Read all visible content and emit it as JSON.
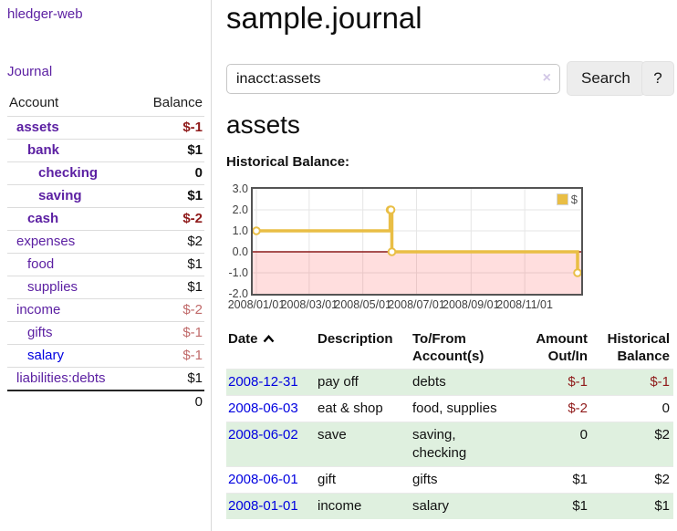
{
  "app": {
    "brand": "hledger-web",
    "nav_journal": "Journal"
  },
  "sidebar": {
    "table": {
      "col_account": "Account",
      "col_balance": "Balance",
      "accounts": [
        {
          "name": "assets",
          "indent": 1,
          "bold": true,
          "balance": "$-1",
          "balance_class": "neg-strong",
          "blue": false
        },
        {
          "name": "bank",
          "indent": 2,
          "bold": true,
          "balance": "$1",
          "balance_class": "normal",
          "blue": false
        },
        {
          "name": "checking",
          "indent": 3,
          "bold": true,
          "balance": "0",
          "balance_class": "normal",
          "blue": false
        },
        {
          "name": "saving",
          "indent": 3,
          "bold": true,
          "balance": "$1",
          "balance_class": "normal",
          "blue": false
        },
        {
          "name": "cash",
          "indent": 2,
          "bold": true,
          "balance": "$-2",
          "balance_class": "neg-strong",
          "blue": false
        },
        {
          "name": "expenses",
          "indent": 1,
          "bold": false,
          "balance": "$2",
          "balance_class": "normal",
          "blue": false
        },
        {
          "name": "food",
          "indent": 2,
          "bold": false,
          "balance": "$1",
          "balance_class": "normal",
          "blue": false
        },
        {
          "name": "supplies",
          "indent": 2,
          "bold": false,
          "balance": "$1",
          "balance_class": "normal",
          "blue": false
        },
        {
          "name": "income",
          "indent": 1,
          "bold": false,
          "balance": "$-2",
          "balance_class": "neg-soft",
          "blue": false
        },
        {
          "name": "gifts",
          "indent": 2,
          "bold": false,
          "balance": "$-1",
          "balance_class": "neg-soft",
          "blue": false
        },
        {
          "name": "salary",
          "indent": 2,
          "bold": false,
          "balance": "$-1",
          "balance_class": "neg-soft",
          "blue": true
        },
        {
          "name": "liabilities:debts",
          "indent": 1,
          "bold": false,
          "balance": "$1",
          "balance_class": "normal",
          "blue": false
        }
      ],
      "total": "0"
    }
  },
  "main": {
    "title": "sample.journal",
    "search": {
      "value": "inacct:assets",
      "clear_icon": "×",
      "button": "Search",
      "help": "?"
    },
    "account_heading": "assets",
    "chart_label": "Historical Balance:"
  },
  "chart_data": {
    "type": "line",
    "title": "Historical Balance:",
    "series": [
      {
        "name": "$",
        "color": "#e9be45",
        "steps": true,
        "points": [
          [
            "2008-01-01",
            1
          ],
          [
            "2008-06-01",
            2
          ],
          [
            "2008-06-02",
            2
          ],
          [
            "2008-06-03",
            0
          ],
          [
            "2008-12-31",
            -1
          ]
        ]
      }
    ],
    "x_ticks": [
      "2008/01/01",
      "2008/03/01",
      "2008/05/01",
      "2008/07/01",
      "2008/09/01",
      "2008/11/01"
    ],
    "y_ticks": [
      3.0,
      2.0,
      1.0,
      0.0,
      -1.0,
      -2.0
    ],
    "xlim": [
      "2008-01-01",
      "2008-12-31"
    ],
    "ylim": [
      -2,
      3
    ],
    "grid": true,
    "legend": {
      "label": "$",
      "position": "top-right"
    },
    "negative_region_color": "rgba(255,0,0,0.13)",
    "zero_line_color": "#8b1a1a"
  },
  "transactions": {
    "headers": {
      "date": "Date",
      "description": "Description",
      "accounts": "To/From Account(s)",
      "amount": "Amount Out/In",
      "balance": "Historical Balance"
    },
    "rows": [
      {
        "date": "2008-12-31",
        "description": "pay off",
        "accounts": "debts",
        "amount": "$-1",
        "amount_neg": true,
        "balance": "$-1",
        "balance_neg": true,
        "green": true
      },
      {
        "date": "2008-06-03",
        "description": "eat & shop",
        "accounts": "food, supplies",
        "amount": "$-2",
        "amount_neg": true,
        "balance": "0",
        "balance_neg": false,
        "green": false
      },
      {
        "date": "2008-06-02",
        "description": "save",
        "accounts": "saving, checking",
        "amount": "0",
        "amount_neg": false,
        "balance": "$2",
        "balance_neg": false,
        "green": true
      },
      {
        "date": "2008-06-01",
        "description": "gift",
        "accounts": "gifts",
        "amount": "$1",
        "amount_neg": false,
        "balance": "$2",
        "balance_neg": false,
        "green": false
      },
      {
        "date": "2008-01-01",
        "description": "income",
        "accounts": "salary",
        "amount": "$1",
        "amount_neg": false,
        "balance": "$1",
        "balance_neg": false,
        "green": true
      }
    ]
  },
  "colors": {
    "link_purple": "#5b1fa2",
    "link_blue": "#0000e0",
    "negative_strong": "#8f1a1a",
    "negative_soft": "#c06a6a",
    "row_green": "#dff0df",
    "chart_line": "#e9be45",
    "button_bg": "#ededed"
  }
}
